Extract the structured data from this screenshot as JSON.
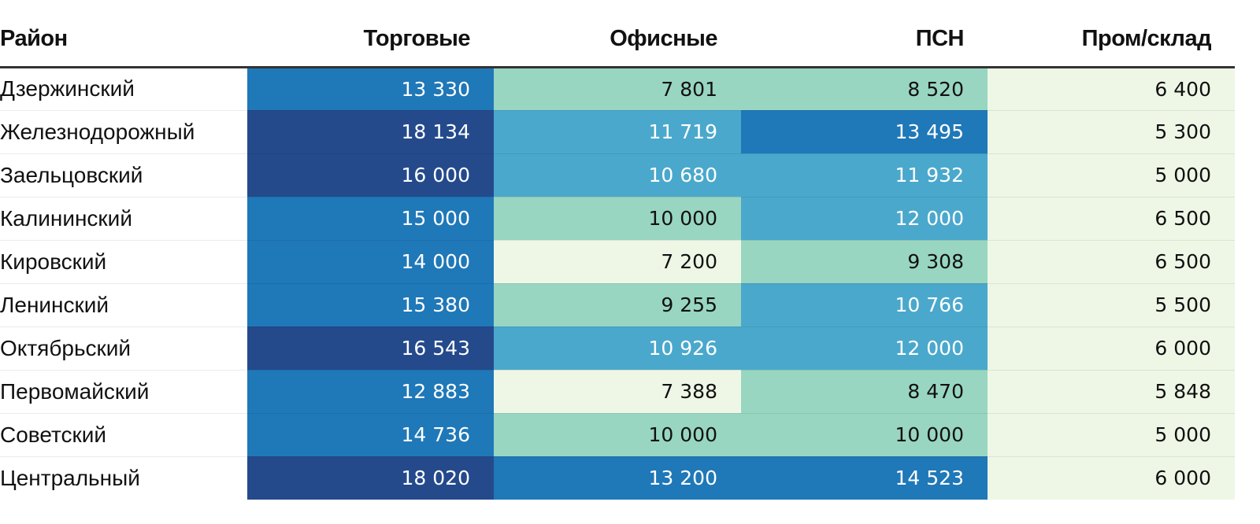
{
  "chart_data": {
    "type": "table",
    "title": "",
    "columns": [
      "Район",
      "Торговые",
      "Офисные",
      "ПСН",
      "Пром/склад"
    ],
    "rows": [
      {
        "district": "Дзержинский",
        "values": [
          "13 330",
          "7 801",
          "8 520",
          "6 400"
        ]
      },
      {
        "district": "Железнодорожный",
        "values": [
          "18 134",
          "11 719",
          "13 495",
          "5 300"
        ]
      },
      {
        "district": "Заельцовский",
        "values": [
          "16 000",
          "10 680",
          "11 932",
          "5 000"
        ]
      },
      {
        "district": "Калининский",
        "values": [
          "15 000",
          "10 000",
          "12 000",
          "6 500"
        ]
      },
      {
        "district": "Кировский",
        "values": [
          "14 000",
          "7 200",
          "9 308",
          "6 500"
        ]
      },
      {
        "district": "Ленинский",
        "values": [
          "15 380",
          "9 255",
          "10 766",
          "5 500"
        ]
      },
      {
        "district": "Октябрьский",
        "values": [
          "16 543",
          "10 926",
          "12 000",
          "6 000"
        ]
      },
      {
        "district": "Первомайский",
        "values": [
          "12 883",
          "7 388",
          "8 470",
          "5 848"
        ]
      },
      {
        "district": "Советский",
        "values": [
          "14 736",
          "10 000",
          "10 000",
          "5 000"
        ]
      },
      {
        "district": "Центральный",
        "values": [
          "18 020",
          "13 200",
          "14 523",
          "6 000"
        ]
      }
    ],
    "color_scale": {
      "bins": [
        {
          "min": 0,
          "max": 7500,
          "color": "#eef7e6",
          "text": "#111111"
        },
        {
          "min": 7500,
          "max": 10500,
          "color": "#98d6c1",
          "text": "#111111"
        },
        {
          "min": 10500,
          "max": 12500,
          "color": "#4aa8cc",
          "text": "#ffffff"
        },
        {
          "min": 12500,
          "max": 16000,
          "color": "#1f78b8",
          "text": "#ffffff"
        },
        {
          "min": 16000,
          "max": 99999,
          "color": "#244a8c",
          "text": "#ffffff"
        }
      ]
    }
  }
}
